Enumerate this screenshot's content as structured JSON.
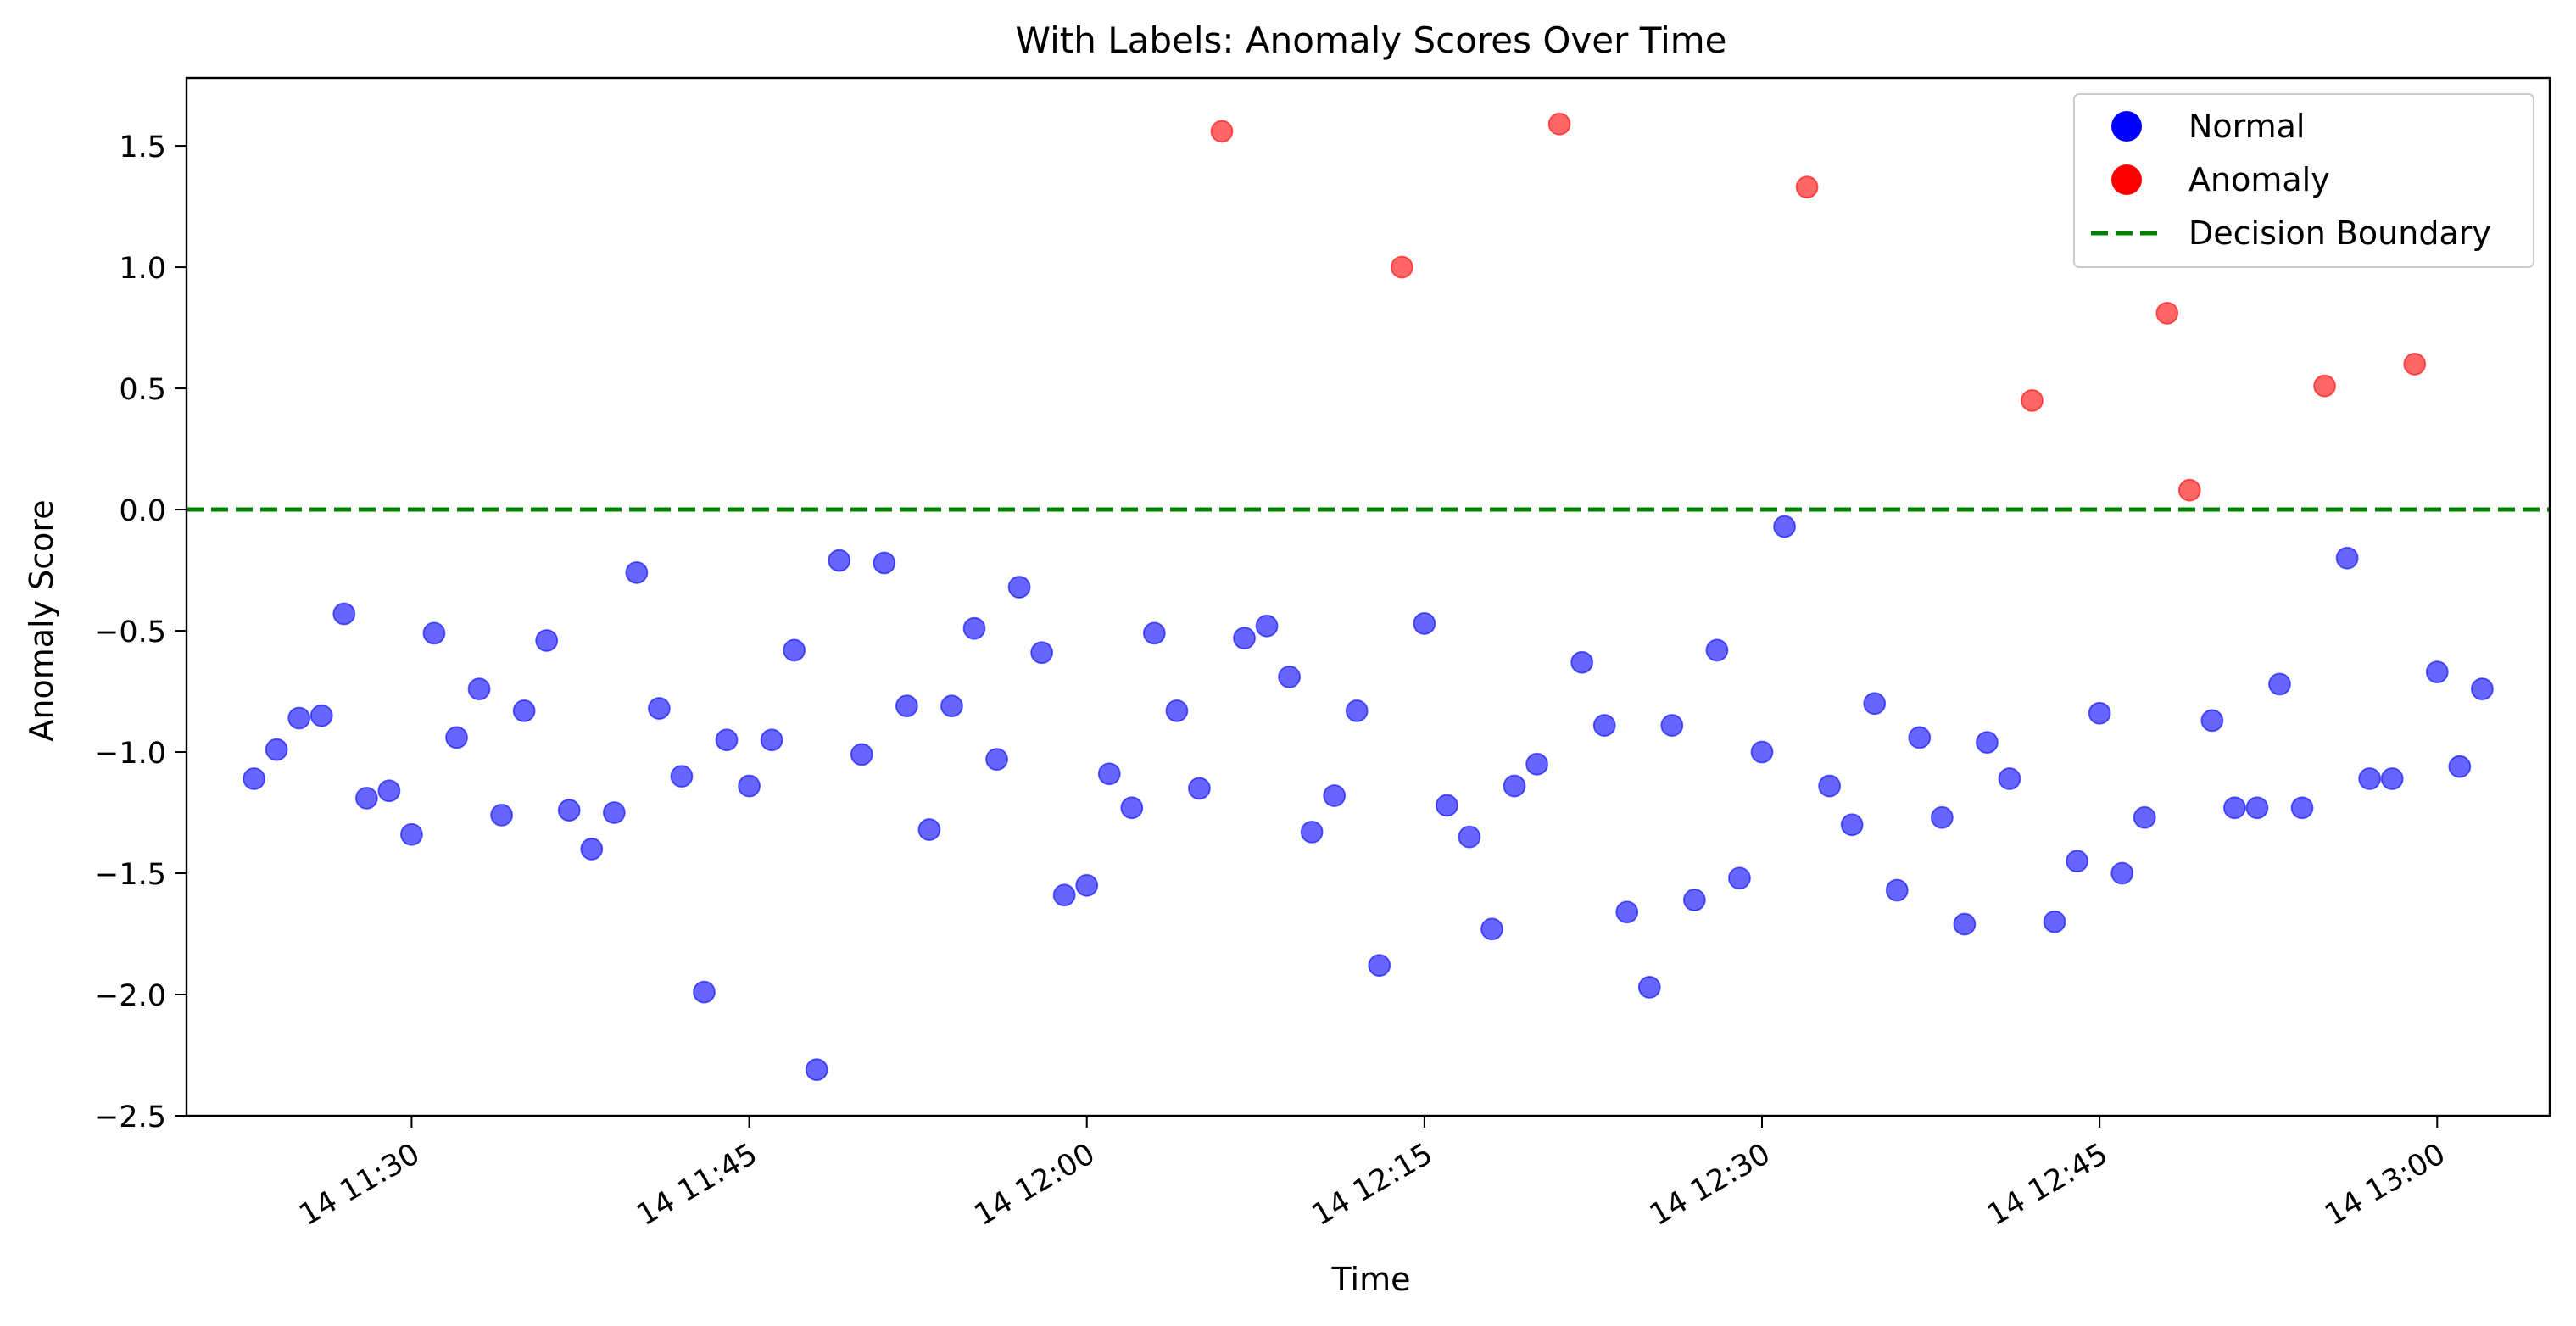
{
  "chart_data": {
    "type": "scatter",
    "title": "With Labels: Anomaly Scores Over Time",
    "xlabel": "Time",
    "ylabel": "Anomaly Score",
    "xlim": [
      "14 11:20",
      "14 13:05"
    ],
    "ylim": [
      -2.5,
      1.78
    ],
    "x_ticks": [
      "14 11:30",
      "14 11:45",
      "14 12:00",
      "14 12:15",
      "14 12:30",
      "14 12:45",
      "14 13:00"
    ],
    "y_ticks": [
      -2.5,
      -2.0,
      -1.5,
      -1.0,
      -0.5,
      0.0,
      0.5,
      1.0,
      1.5
    ],
    "y_tick_labels": [
      "−2.5",
      "−2.0",
      "−1.5",
      "−1.0",
      "−0.5",
      "0.0",
      "0.5",
      "1.0",
      "1.5"
    ],
    "grid": false,
    "legend": {
      "placement": "top-right",
      "entries": [
        {
          "label": "Normal",
          "marker": "circle",
          "color": "#0000ff"
        },
        {
          "label": "Anomaly",
          "marker": "circle",
          "color": "#ff0000"
        },
        {
          "label": "Decision Boundary",
          "marker": "dashed-line",
          "color": "#008000"
        }
      ]
    },
    "decision_boundary": 0.0,
    "series": [
      {
        "name": "Normal",
        "color": "#0000ff",
        "points": [
          [
            "14 11:23",
            -1.11
          ],
          [
            "14 11:24",
            -0.99
          ],
          [
            "14 11:25",
            -0.86
          ],
          [
            "14 11:26",
            -0.85
          ],
          [
            "14 11:27",
            -0.43
          ],
          [
            "14 11:28",
            -1.19
          ],
          [
            "14 11:29",
            -1.16
          ],
          [
            "14 11:30",
            -1.34
          ],
          [
            "14 11:31",
            -0.51
          ],
          [
            "14 11:32",
            -0.94
          ],
          [
            "14 11:33",
            -0.74
          ],
          [
            "14 11:34",
            -1.26
          ],
          [
            "14 11:35",
            -0.83
          ],
          [
            "14 11:36",
            -0.54
          ],
          [
            "14 11:37",
            -1.24
          ],
          [
            "14 11:38",
            -1.4
          ],
          [
            "14 11:39",
            -1.25
          ],
          [
            "14 11:40",
            -0.26
          ],
          [
            "14 11:41",
            -0.82
          ],
          [
            "14 11:42",
            -1.1
          ],
          [
            "14 11:43",
            -1.99
          ],
          [
            "14 11:44",
            -0.95
          ],
          [
            "14 11:45",
            -1.14
          ],
          [
            "14 11:46",
            -0.95
          ],
          [
            "14 11:47",
            -0.58
          ],
          [
            "14 11:48",
            -2.31
          ],
          [
            "14 11:49",
            -0.21
          ],
          [
            "14 11:50",
            -1.01
          ],
          [
            "14 11:51",
            -0.22
          ],
          [
            "14 11:52",
            -0.81
          ],
          [
            "14 11:53",
            -1.32
          ],
          [
            "14 11:54",
            -0.81
          ],
          [
            "14 11:55",
            -0.49
          ],
          [
            "14 11:56",
            -1.03
          ],
          [
            "14 11:57",
            -0.32
          ],
          [
            "14 11:58",
            -0.59
          ],
          [
            "14 11:59",
            -1.59
          ],
          [
            "14 12:00",
            -1.55
          ],
          [
            "14 12:01",
            -1.09
          ],
          [
            "14 12:02",
            -1.23
          ],
          [
            "14 12:03",
            -0.51
          ],
          [
            "14 12:04",
            -0.83
          ],
          [
            "14 12:05",
            -1.15
          ],
          [
            "14 12:07",
            -0.53
          ],
          [
            "14 12:08",
            -0.48
          ],
          [
            "14 12:09",
            -0.69
          ],
          [
            "14 12:10",
            -1.33
          ],
          [
            "14 12:11",
            -1.18
          ],
          [
            "14 12:12",
            -0.83
          ],
          [
            "14 12:13",
            -1.88
          ],
          [
            "14 12:15",
            -0.47
          ],
          [
            "14 12:16",
            -1.22
          ],
          [
            "14 12:17",
            -1.35
          ],
          [
            "14 12:18",
            -1.73
          ],
          [
            "14 12:19",
            -1.14
          ],
          [
            "14 12:20",
            -1.05
          ],
          [
            "14 12:22",
            -0.63
          ],
          [
            "14 12:23",
            -0.89
          ],
          [
            "14 12:24",
            -1.66
          ],
          [
            "14 12:25",
            -1.97
          ],
          [
            "14 12:26",
            -0.89
          ],
          [
            "14 12:27",
            -1.61
          ],
          [
            "14 12:28",
            -0.58
          ],
          [
            "14 12:29",
            -1.52
          ],
          [
            "14 12:30",
            -1.0
          ],
          [
            "14 12:31",
            -0.07
          ],
          [
            "14 12:33",
            -1.14
          ],
          [
            "14 12:34",
            -1.3
          ],
          [
            "14 12:35",
            -0.8
          ],
          [
            "14 12:36",
            -1.57
          ],
          [
            "14 12:37",
            -0.94
          ],
          [
            "14 12:38",
            -1.27
          ],
          [
            "14 12:39",
            -1.71
          ],
          [
            "14 12:40",
            -0.96
          ],
          [
            "14 12:41",
            -1.11
          ],
          [
            "14 12:43",
            -1.7
          ],
          [
            "14 12:44",
            -1.45
          ],
          [
            "14 12:45",
            -0.84
          ],
          [
            "14 12:46",
            -1.5
          ],
          [
            "14 12:47",
            -1.27
          ],
          [
            "14 12:50",
            -0.87
          ],
          [
            "14 12:51",
            -1.23
          ],
          [
            "14 12:52",
            -1.23
          ],
          [
            "14 12:53",
            -0.72
          ],
          [
            "14 12:54",
            -1.23
          ],
          [
            "14 12:56",
            -0.2
          ],
          [
            "14 12:57",
            -1.11
          ],
          [
            "14 12:58",
            -1.11
          ],
          [
            "14 13:00",
            -0.67
          ],
          [
            "14 13:01",
            -1.06
          ],
          [
            "14 13:02",
            -0.74
          ]
        ]
      },
      {
        "name": "Anomaly",
        "color": "#ff0000",
        "points": [
          [
            "14 12:06",
            1.56
          ],
          [
            "14 12:14",
            1.0
          ],
          [
            "14 12:21",
            1.59
          ],
          [
            "14 12:32",
            1.33
          ],
          [
            "14 12:42",
            0.45
          ],
          [
            "14 12:48",
            0.81
          ],
          [
            "14 12:49",
            0.08
          ],
          [
            "14 12:55",
            0.51
          ],
          [
            "14 12:59",
            0.6
          ]
        ]
      }
    ]
  }
}
